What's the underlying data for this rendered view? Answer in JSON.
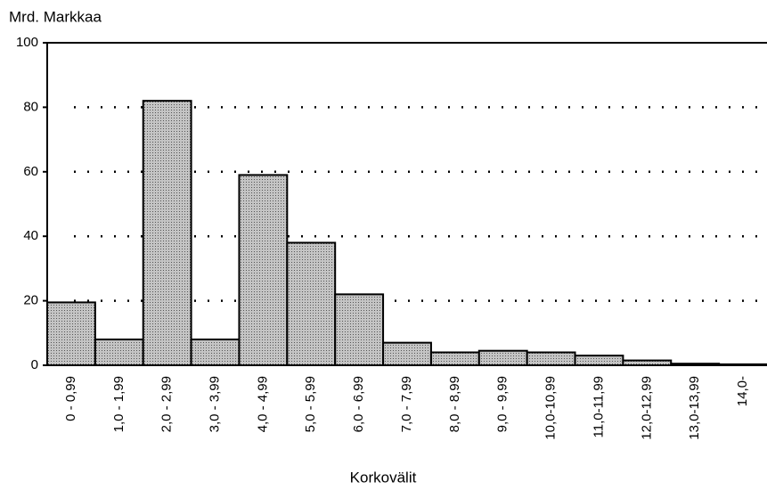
{
  "chart_data": {
    "type": "bar",
    "y_label": "Mrd. Markkaa",
    "x_label": "Korkovälit",
    "categories": [
      "0  - 0,99",
      "1,0 - 1,99",
      "2,0 - 2,99",
      "3,0 - 3,99",
      "4,0 - 4,99",
      "5,0 - 5,99",
      "6,0 - 6,99",
      "7,0 - 7,99",
      "8,0 - 8,99",
      "9,0 - 9,99",
      "10,0-10,99",
      "11,0-11,99",
      "12,0-12,99",
      "13,0-13,99",
      "14,0-"
    ],
    "values": [
      19.5,
      8,
      82,
      8,
      59,
      38,
      22,
      7,
      4,
      4.5,
      4,
      3,
      1.5,
      0.5,
      0.3
    ],
    "color": "#c4c4c4",
    "ylim": [
      0,
      100
    ],
    "yticks": [
      0,
      20,
      40,
      60,
      80,
      100
    ],
    "grid": true
  }
}
